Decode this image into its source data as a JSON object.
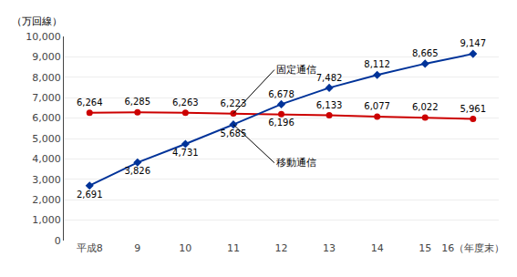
{
  "chart_data": {
    "type": "line",
    "ylabel": "（万回線）",
    "categories": [
      "平成8",
      "9",
      "10",
      "11",
      "12",
      "13",
      "14",
      "15",
      "16（年度末）"
    ],
    "series": [
      {
        "name": "固定通信",
        "color": "#cc0000",
        "marker": "circle",
        "values": [
          6264,
          6285,
          6263,
          6223,
          6196,
          6133,
          6077,
          6022,
          5961
        ],
        "value_labels": [
          "6,264",
          "6,285",
          "6,263",
          "6,223",
          "6,196",
          "6,133",
          "6,077",
          "6,022",
          "5,961"
        ]
      },
      {
        "name": "移動通信",
        "color": "#003399",
        "marker": "diamond",
        "values": [
          2691,
          3826,
          4731,
          5685,
          6678,
          7482,
          8112,
          8665,
          9147
        ],
        "value_labels": [
          "2,691",
          "3,826",
          "4,731",
          "5,685",
          "6,678",
          "7,482",
          "8,112",
          "8,665",
          "9,147"
        ]
      }
    ],
    "ylim": [
      0,
      10000
    ],
    "yticks": [
      0,
      {
        "value": 1000,
        "label": "1,000"
      },
      {
        "value": 2000,
        "label": "2,000"
      },
      {
        "value": 3000,
        "label": "3,000"
      },
      {
        "value": 4000,
        "label": "4,000"
      },
      {
        "value": 5000,
        "label": "5,000"
      },
      {
        "value": 6000,
        "label": "6,000"
      },
      {
        "value": 7000,
        "label": "7,000"
      },
      {
        "value": 8000,
        "label": "8,000"
      },
      {
        "value": 9000,
        "label": "9,000"
      },
      {
        "value": 10000,
        "label": "10,000"
      }
    ],
    "grid": true,
    "data_labels": true
  }
}
